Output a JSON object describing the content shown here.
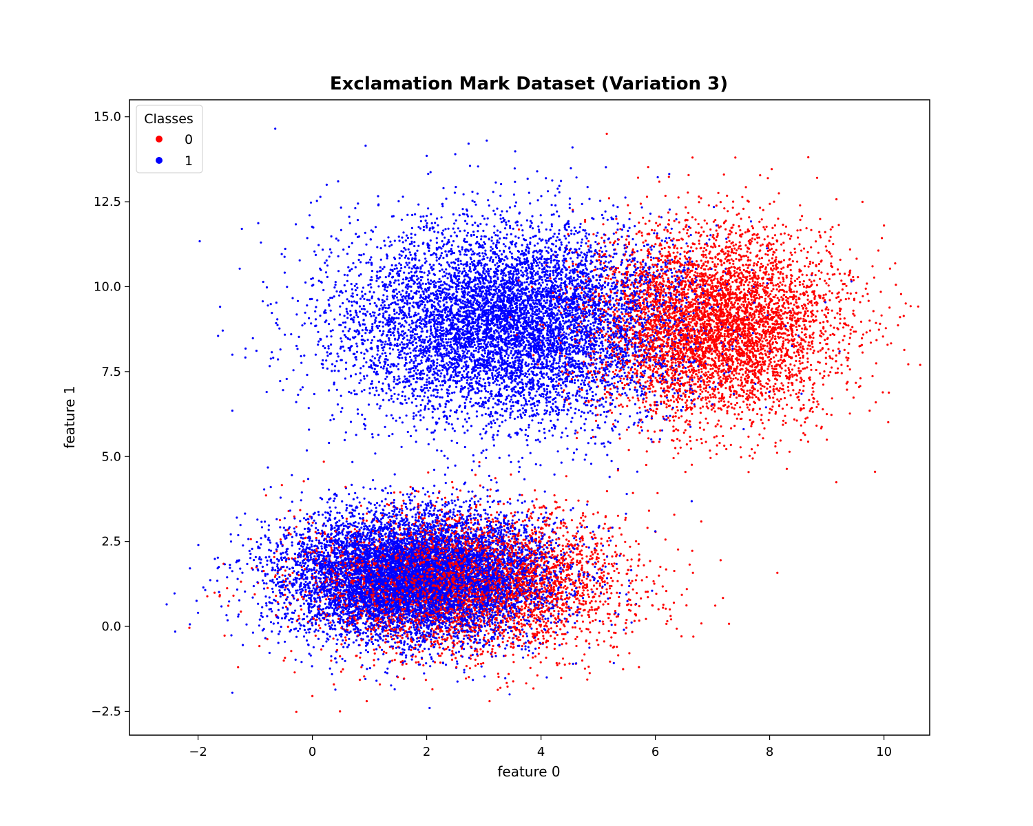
{
  "chart_data": {
    "type": "scatter",
    "title": "Exclamation Mark Dataset (Variation 3)",
    "xlabel": "feature 0",
    "ylabel": "feature 1",
    "xlim": [
      -3.2,
      10.8
    ],
    "ylim": [
      -3.2,
      15.5
    ],
    "xticks": [
      -2,
      0,
      2,
      4,
      6,
      8,
      10
    ],
    "xtick_labels": [
      "−2",
      "0",
      "2",
      "4",
      "6",
      "8",
      "10"
    ],
    "yticks": [
      -2.5,
      0.0,
      2.5,
      5.0,
      7.5,
      10.0,
      12.5,
      15.0
    ],
    "ytick_labels": [
      "−2.5",
      "0.0",
      "2.5",
      "5.0",
      "7.5",
      "10.0",
      "12.5",
      "15.0"
    ],
    "grid": false,
    "legend": {
      "title": "Classes",
      "placement": "top-left"
    },
    "series": [
      {
        "name": "0",
        "color": "#ff0000",
        "clusters": [
          {
            "center": [
              2.7,
              1.3
            ],
            "spread": [
              1.35,
              1.0
            ],
            "count": 4500
          },
          {
            "center": [
              7.0,
              8.9
            ],
            "spread": [
              1.1,
              1.4
            ],
            "count": 5500
          }
        ],
        "points": [
          [
            5.15,
            14.5
          ],
          [
            7.4,
            13.8
          ],
          [
            6.65,
            13.8
          ],
          [
            7.2,
            13.3
          ],
          [
            10.0,
            11.8
          ],
          [
            9.8,
            10.6
          ],
          [
            9.75,
            9.0
          ],
          [
            9.75,
            6.35
          ],
          [
            9.0,
            6.25
          ],
          [
            8.1,
            5.3
          ],
          [
            6.55,
            1.1
          ],
          [
            5.35,
            -0.85
          ],
          [
            0.0,
            -2.05
          ],
          [
            0.95,
            -2.2
          ],
          [
            3.1,
            -2.2
          ],
          [
            2.1,
            -1.85
          ],
          [
            -1.3,
            -1.2
          ],
          [
            0.2,
            4.85
          ],
          [
            6.35,
            5.25
          ],
          [
            5.85,
            5.15
          ]
        ]
      },
      {
        "name": "1",
        "color": "#0000ff",
        "clusters": [
          {
            "center": [
              1.8,
              1.5
            ],
            "spread": [
              1.15,
              0.95
            ],
            "count": 9000
          },
          {
            "center": [
              3.5,
              8.9
            ],
            "spread": [
              1.5,
              1.45
            ],
            "count": 8000
          }
        ],
        "points": [
          [
            -0.65,
            14.65
          ],
          [
            3.05,
            14.3
          ],
          [
            4.55,
            14.1
          ],
          [
            2.0,
            13.85
          ],
          [
            2.5,
            13.9
          ],
          [
            -2.55,
            0.65
          ],
          [
            -2.4,
            -0.15
          ],
          [
            -2.0,
            0.4
          ],
          [
            -1.4,
            -1.95
          ],
          [
            2.05,
            -2.4
          ],
          [
            3.45,
            -2.0
          ],
          [
            -1.65,
            8.55
          ],
          [
            -1.4,
            8.0
          ],
          [
            -0.8,
            6.9
          ],
          [
            -1.4,
            6.35
          ],
          [
            -0.9,
            11.3
          ],
          [
            -0.05,
            12.1
          ],
          [
            0.45,
            13.1
          ],
          [
            0.25,
            13.0
          ],
          [
            4.35,
            3.1
          ],
          [
            5.2,
            4.4
          ],
          [
            5.5,
            3.9
          ],
          [
            6.0,
            2.8
          ],
          [
            5.45,
            -0.1
          ],
          [
            4.1,
            -1.5
          ]
        ]
      }
    ]
  }
}
